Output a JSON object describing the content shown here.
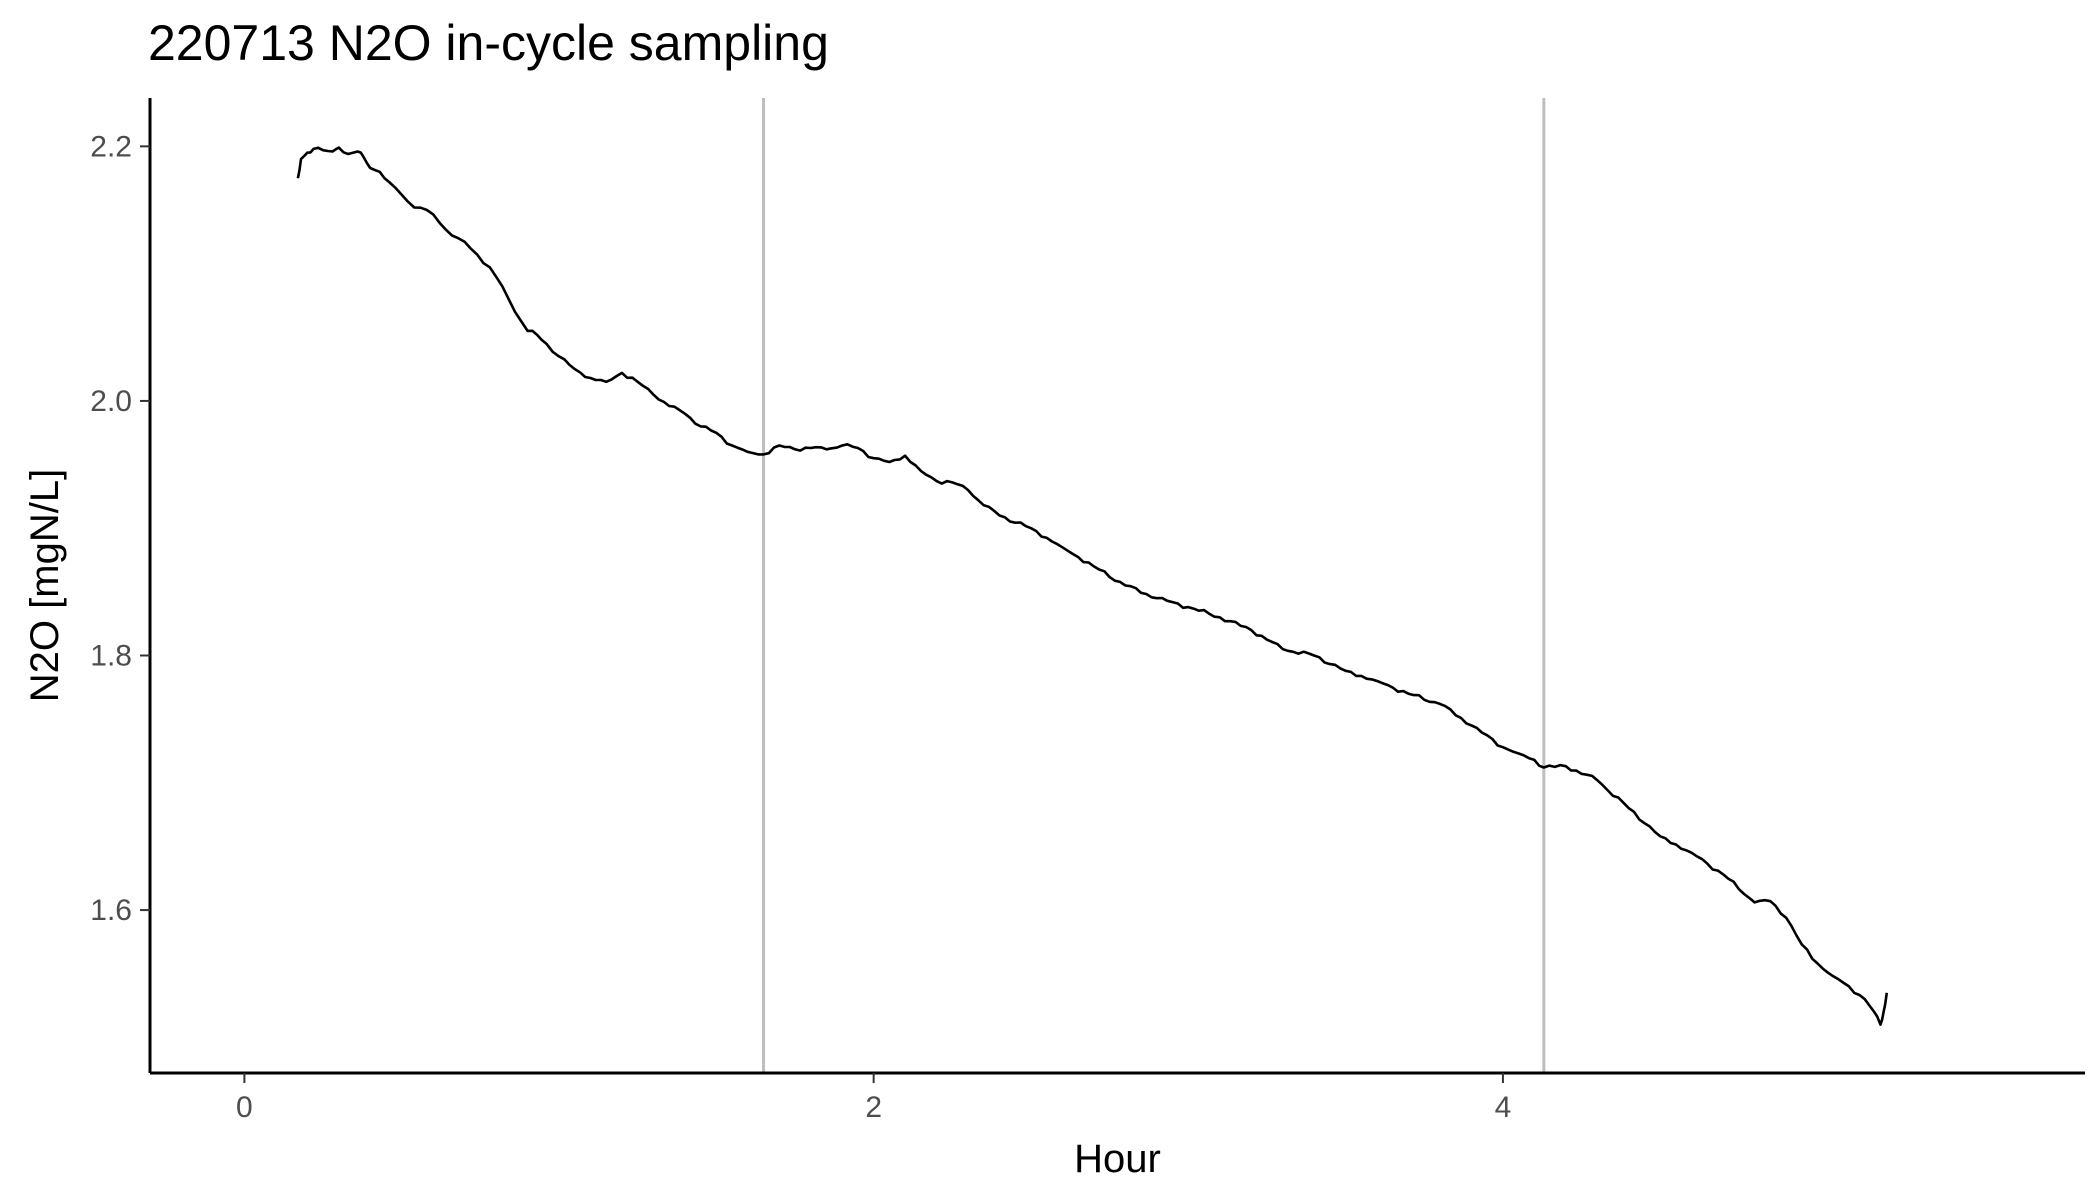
{
  "chart_data": {
    "type": "line",
    "title": "220713 N2O in-cycle sampling",
    "xlabel": "Hour",
    "ylabel": "N2O [mgN/L]",
    "xlim": [
      -0.3,
      5.85
    ],
    "ylim": [
      1.472,
      2.238
    ],
    "x_ticks": [
      0,
      2,
      4
    ],
    "x_tick_labels": [
      "0",
      "2",
      "4"
    ],
    "y_ticks": [
      1.6,
      1.8,
      2.0,
      2.2
    ],
    "y_tick_labels": [
      "1.6",
      "1.8",
      "2.0",
      "2.2"
    ],
    "grid": false,
    "legend": "none",
    "vlines": [
      1.65,
      4.13
    ],
    "colors": {
      "line": "#000000",
      "vline": "#bebebe",
      "axis": "#000000"
    },
    "series": [
      {
        "x": [
          0.17,
          0.18,
          0.2,
          0.22,
          0.25,
          0.28,
          0.3,
          0.33,
          0.36,
          0.38,
          0.4,
          0.43,
          0.46,
          0.5,
          0.54,
          0.58,
          0.62,
          0.66,
          0.7,
          0.74,
          0.78,
          0.82,
          0.86,
          0.9,
          0.93,
          0.96,
          1.0,
          1.05,
          1.1,
          1.15,
          1.2,
          1.25,
          1.3,
          1.35,
          1.4,
          1.45,
          1.5,
          1.55,
          1.6,
          1.65,
          1.7,
          1.75,
          1.8,
          1.85,
          1.9,
          1.95,
          2.0,
          2.05,
          2.1,
          2.15,
          2.2,
          2.25,
          2.3,
          2.35,
          2.4,
          2.5,
          2.6,
          2.7,
          2.8,
          2.9,
          3.0,
          3.1,
          3.2,
          3.3,
          3.4,
          3.5,
          3.6,
          3.7,
          3.8,
          3.9,
          4.0,
          4.05,
          4.1,
          4.13,
          4.2,
          4.3,
          4.4,
          4.5,
          4.6,
          4.7,
          4.8,
          4.85,
          4.9,
          4.95,
          5.0,
          5.05,
          5.1,
          5.15,
          5.18,
          5.2,
          5.21,
          5.22
        ],
        "values": [
          2.175,
          2.19,
          2.195,
          2.198,
          2.197,
          2.196,
          2.199,
          2.194,
          2.196,
          2.191,
          2.183,
          2.18,
          2.172,
          2.162,
          2.152,
          2.15,
          2.14,
          2.13,
          2.125,
          2.115,
          2.105,
          2.09,
          2.07,
          2.055,
          2.052,
          2.045,
          2.035,
          2.025,
          2.018,
          2.015,
          2.022,
          2.015,
          2.005,
          1.996,
          1.99,
          1.98,
          1.975,
          1.965,
          1.96,
          1.958,
          1.965,
          1.962,
          1.963,
          1.962,
          1.965,
          1.963,
          1.955,
          1.952,
          1.957,
          1.945,
          1.937,
          1.936,
          1.93,
          1.918,
          1.91,
          1.9,
          1.885,
          1.87,
          1.855,
          1.845,
          1.838,
          1.83,
          1.82,
          1.805,
          1.8,
          1.788,
          1.78,
          1.77,
          1.762,
          1.745,
          1.728,
          1.723,
          1.718,
          1.712,
          1.713,
          1.702,
          1.68,
          1.658,
          1.645,
          1.628,
          1.606,
          1.607,
          1.594,
          1.573,
          1.558,
          1.548,
          1.54,
          1.53,
          1.52,
          1.51,
          1.52,
          1.535
        ]
      }
    ]
  }
}
